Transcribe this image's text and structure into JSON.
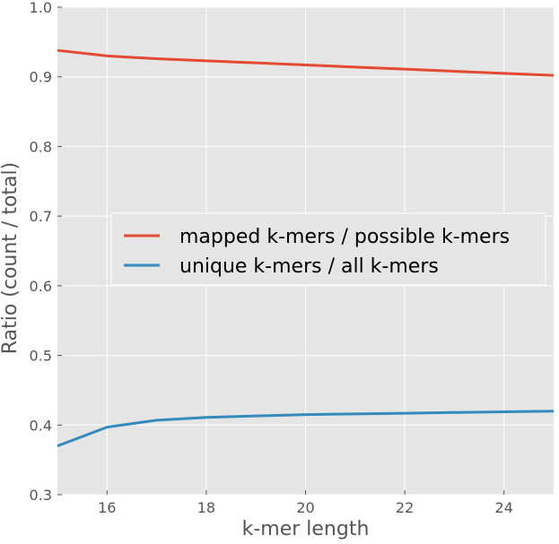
{
  "chart_data": {
    "type": "line",
    "title": "",
    "xlabel": "k-mer length",
    "ylabel": "Ratio (count / total)",
    "xlim": [
      15,
      25
    ],
    "ylim": [
      0.3,
      1.0
    ],
    "xticks": [
      16,
      18,
      20,
      22,
      24
    ],
    "xtick_labels": [
      "16",
      "18",
      "20",
      "22",
      "24"
    ],
    "yticks": [
      0.3,
      0.4,
      0.5,
      0.6,
      0.7,
      0.8,
      0.9,
      1.0
    ],
    "ytick_labels": [
      "0.3",
      "0.4",
      "0.5",
      "0.6",
      "0.7",
      "0.8",
      "0.9",
      "1.0"
    ],
    "grid": true,
    "legend_position": "center-right",
    "x": [
      15,
      16,
      17,
      18,
      19,
      20,
      21,
      22,
      23,
      24,
      25
    ],
    "series": [
      {
        "name": "mapped k-mers / possible k-mers",
        "color": "#E24A33",
        "values": [
          0.938,
          0.93,
          0.926,
          0.923,
          0.92,
          0.917,
          0.914,
          0.911,
          0.908,
          0.905,
          0.902
        ]
      },
      {
        "name": "unique k-mers / all k-mers",
        "color": "#348ABD",
        "values": [
          0.37,
          0.397,
          0.407,
          0.411,
          0.413,
          0.415,
          0.416,
          0.417,
          0.418,
          0.419,
          0.42
        ]
      }
    ],
    "plot_background": "#E5E5E5",
    "grid_color": "#FFFFFF",
    "text_color": "#555555"
  }
}
